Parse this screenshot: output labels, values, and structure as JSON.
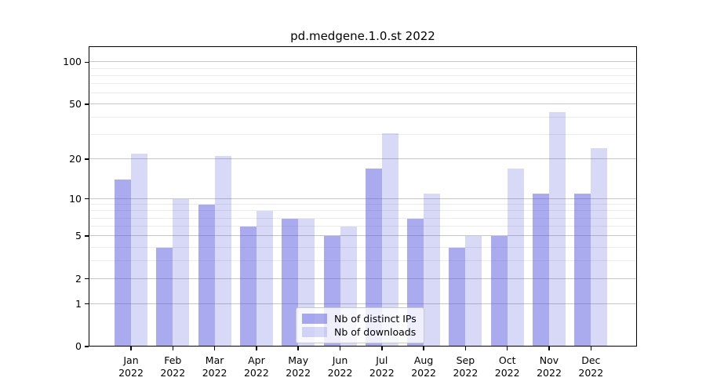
{
  "chart_data": {
    "type": "bar",
    "title": "pd.medgene.1.0.st 2022",
    "categories": [
      "Jan",
      "Feb",
      "Mar",
      "Apr",
      "May",
      "Jun",
      "Jul",
      "Aug",
      "Sep",
      "Oct",
      "Nov",
      "Dec"
    ],
    "x_year": "2022",
    "series": [
      {
        "name": "Nb of distinct IPs",
        "color": "rgba(85,85,221,0.50)",
        "values": [
          14,
          4,
          9,
          6,
          7,
          5,
          17,
          7,
          4,
          5,
          11,
          11
        ]
      },
      {
        "name": "Nb of downloads",
        "color": "rgba(85,85,221,0.23)",
        "values": [
          22,
          10,
          21,
          8,
          7,
          6,
          31,
          11,
          5,
          17,
          44,
          24
        ]
      }
    ],
    "xlabel": "",
    "ylabel": "",
    "yscale": "log1p",
    "ylim": [
      0,
      130
    ],
    "yticks": [
      100,
      50,
      20,
      10,
      5,
      2,
      1,
      0
    ],
    "grid": {
      "major": [
        1,
        2,
        5,
        10,
        20,
        50,
        100
      ],
      "minor": [
        3,
        4,
        6,
        7,
        8,
        9,
        30,
        40,
        60,
        70,
        80,
        90
      ],
      "major_color": "#c6c6c6",
      "minor_color": "#ebebeb"
    },
    "legend_position": "lower center",
    "spine_color": "#000000",
    "text_color": "#000000"
  }
}
